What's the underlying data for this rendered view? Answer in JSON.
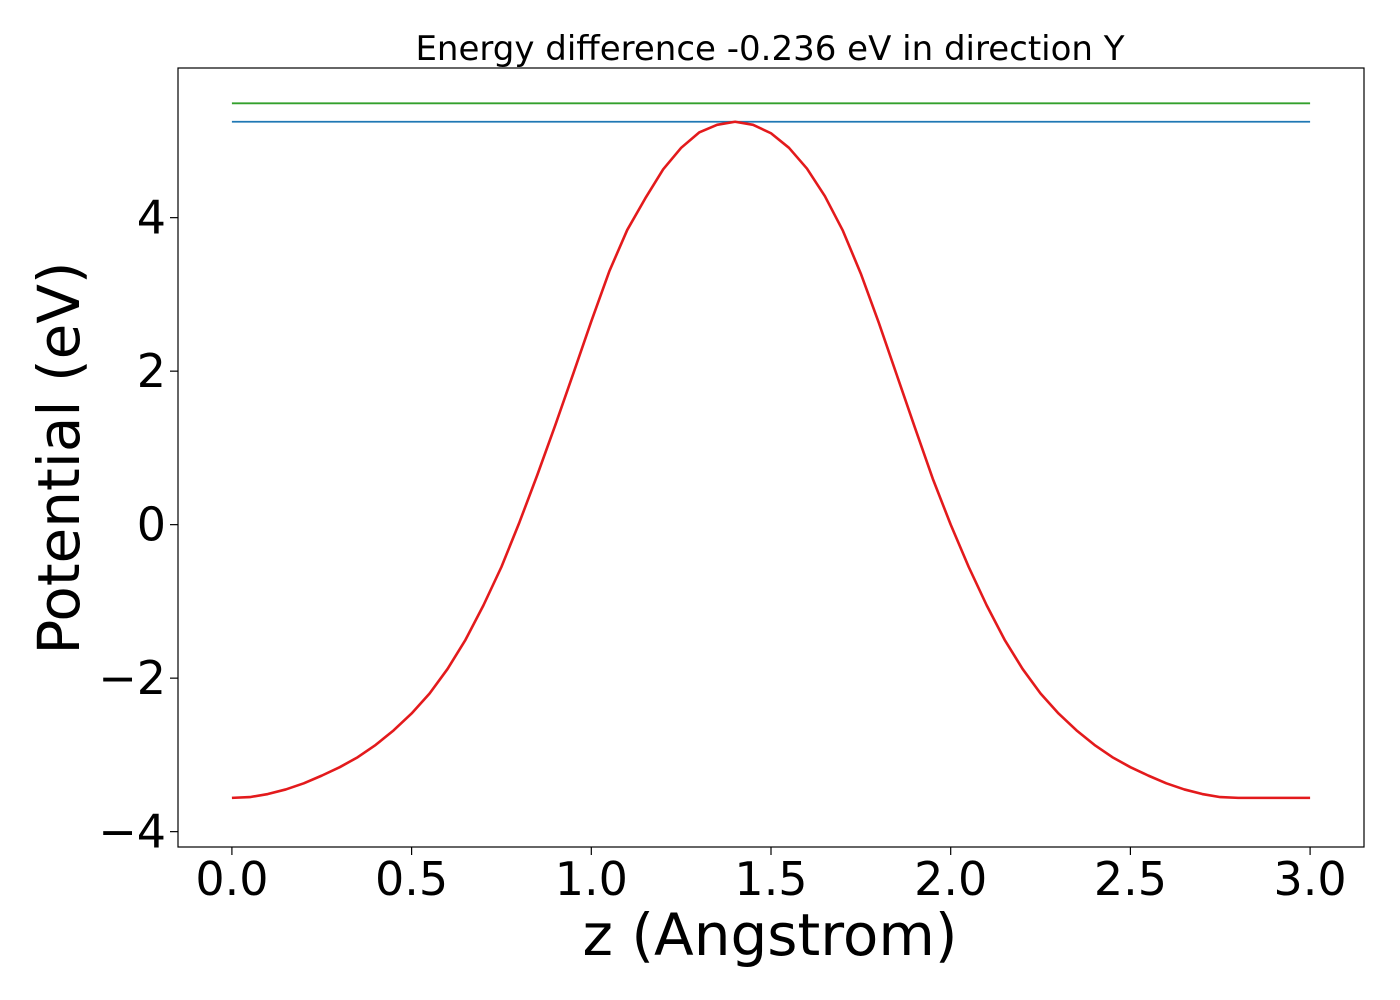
{
  "chart_data": {
    "type": "line",
    "title": "Energy difference -0.236 eV in direction Y",
    "xlabel": "z (Angstrom)",
    "ylabel": "Potential (eV)",
    "xlim": [
      -0.15,
      3.15
    ],
    "ylim": [
      -4.2,
      5.95
    ],
    "xticks": [
      0.0,
      0.5,
      1.0,
      1.5,
      2.0,
      2.5,
      3.0
    ],
    "xtick_labels": [
      "0.0",
      "0.5",
      "1.0",
      "1.5",
      "2.0",
      "2.5",
      "3.0"
    ],
    "yticks": [
      -4,
      -2,
      0,
      2,
      4
    ],
    "ytick_labels": [
      "−4",
      "−2",
      "0",
      "2",
      "4"
    ],
    "grid": false,
    "colors": {
      "potential": "#e31a1c",
      "level_upper": "#33a02c",
      "level_lower": "#1f78b4"
    },
    "series": [
      {
        "name": "potential",
        "x": [
          0.0,
          0.05,
          0.1,
          0.15,
          0.2,
          0.25,
          0.3,
          0.35,
          0.4,
          0.45,
          0.5,
          0.55,
          0.6,
          0.65,
          0.7,
          0.75,
          0.8,
          0.85,
          0.9,
          0.95,
          1.0,
          1.05,
          1.1,
          1.15,
          1.2,
          1.25,
          1.3,
          1.35,
          1.4,
          1.45,
          1.5,
          1.55,
          1.6,
          1.65,
          1.7,
          1.75,
          1.8,
          1.85,
          1.9,
          1.95,
          2.0,
          2.05,
          2.1,
          2.15,
          2.2,
          2.25,
          2.3,
          2.35,
          2.4,
          2.45,
          2.5,
          2.55,
          2.6,
          2.65,
          2.7,
          2.75,
          2.8,
          2.85,
          2.9,
          2.95,
          3.0
        ],
        "y": [
          -3.56,
          -3.55,
          -3.51,
          -3.45,
          -3.37,
          -3.27,
          -3.16,
          -3.03,
          -2.87,
          -2.68,
          -2.46,
          -2.2,
          -1.88,
          -1.5,
          -1.05,
          -0.55,
          0.03,
          0.65,
          1.3,
          1.97,
          2.65,
          3.3,
          3.84,
          4.25,
          4.63,
          4.91,
          5.11,
          5.21,
          5.25,
          5.21,
          5.1,
          4.91,
          4.64,
          4.28,
          3.83,
          3.27,
          2.63,
          1.95,
          1.27,
          0.6,
          0.0,
          -0.55,
          -1.05,
          -1.5,
          -1.88,
          -2.2,
          -2.46,
          -2.68,
          -2.87,
          -3.03,
          -3.16,
          -3.27,
          -3.37,
          -3.45,
          -3.51,
          -3.55,
          -3.56,
          -3.56,
          -3.56,
          -3.56,
          -3.56
        ]
      },
      {
        "name": "level_upper",
        "x": [
          0.0,
          3.0
        ],
        "y": [
          5.49,
          5.49
        ]
      },
      {
        "name": "level_lower",
        "x": [
          0.0,
          3.0
        ],
        "y": [
          5.25,
          5.25
        ]
      }
    ]
  }
}
